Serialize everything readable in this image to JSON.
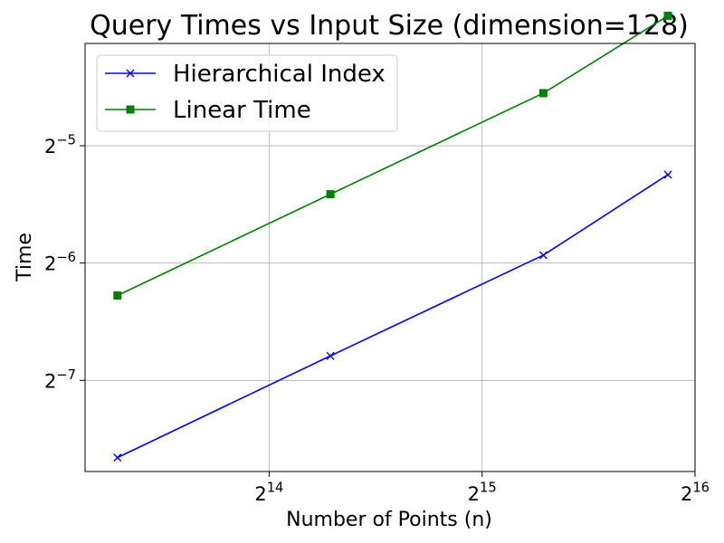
{
  "chart_data": {
    "type": "line",
    "title": "Query Times vs Input Size (dimension=128)",
    "xlabel": "Number of Points (n)",
    "ylabel": "Time",
    "x_scale": "log2",
    "y_scale": "log2",
    "x": [
      10000,
      20000,
      40000,
      60000
    ],
    "xlim": [
      9000,
      65536
    ],
    "ylim": [
      0.00456,
      0.0572
    ],
    "x_ticks": [
      {
        "value": 16384,
        "base": "2",
        "exponent": "14"
      },
      {
        "value": 32768,
        "base": "2",
        "exponent": "15"
      },
      {
        "value": 65536,
        "base": "2",
        "exponent": "16"
      }
    ],
    "y_ticks": [
      {
        "value": 0.03125,
        "base": "2",
        "exponent": "−5"
      },
      {
        "value": 0.015625,
        "base": "2",
        "exponent": "−6"
      },
      {
        "value": 0.0078125,
        "base": "2",
        "exponent": "−7"
      }
    ],
    "grid": true,
    "legend_position": "top-left",
    "series": [
      {
        "name": "Hierarchical Index",
        "color": "#0000ff",
        "marker": "x",
        "values": [
          0.00495,
          0.00903,
          0.01637,
          0.02635
        ]
      },
      {
        "name": "Linear Time",
        "color": "#008000",
        "marker": "square",
        "values": [
          0.0129,
          0.02347,
          0.04264,
          0.06736
        ]
      }
    ]
  }
}
